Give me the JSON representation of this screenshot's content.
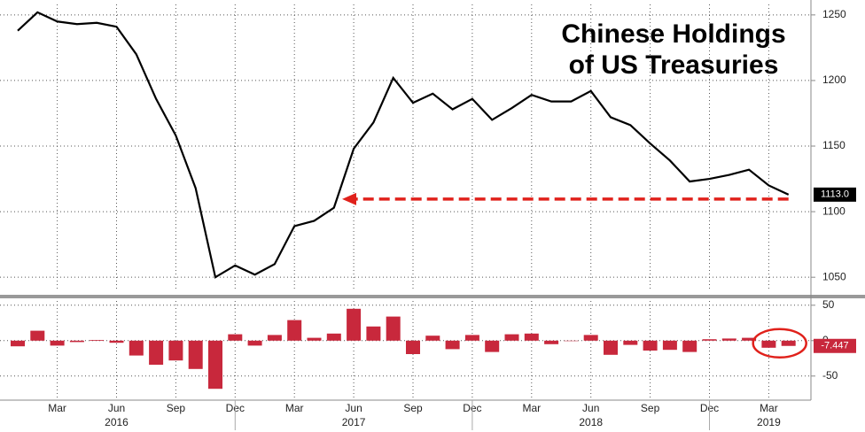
{
  "chart_data": [
    {
      "type": "line",
      "title": "Chinese Holdings",
      "subtitle": "of US Treasuries",
      "x": [
        "2016-01",
        "2016-02",
        "2016-03",
        "2016-04",
        "2016-05",
        "2016-06",
        "2016-07",
        "2016-08",
        "2016-09",
        "2016-10",
        "2016-11",
        "2016-12",
        "2017-01",
        "2017-02",
        "2017-03",
        "2017-04",
        "2017-05",
        "2017-06",
        "2017-07",
        "2017-08",
        "2017-09",
        "2017-10",
        "2017-11",
        "2017-12",
        "2018-01",
        "2018-02",
        "2018-03",
        "2018-04",
        "2018-05",
        "2018-06",
        "2018-07",
        "2018-08",
        "2018-09",
        "2018-10",
        "2018-11",
        "2018-12",
        "2019-01",
        "2019-02",
        "2019-03",
        "2019-04"
      ],
      "series": [
        {
          "color": "#000000",
          "values": [
            1238,
            1252,
            1245,
            1243,
            1244,
            1241,
            1220,
            1186,
            1158,
            1118,
            1050,
            1059,
            1052,
            1060,
            1089,
            1093,
            1103,
            1148,
            1168,
            1202,
            1183,
            1190,
            1178,
            1186,
            1170,
            1179,
            1189,
            1184,
            1184,
            1192,
            1172,
            1166,
            1152,
            1139,
            1123,
            1125,
            1128,
            1132,
            1120,
            1113
          ],
          "value_labels": [
            null,
            null,
            null,
            null,
            null,
            null,
            null,
            null,
            null,
            null,
            null,
            null,
            null,
            null,
            null,
            null,
            null,
            null,
            null,
            null,
            null,
            null,
            null,
            null,
            null,
            null,
            null,
            null,
            null,
            null,
            null,
            null,
            null,
            null,
            null,
            null,
            null,
            null,
            null,
            "1113.0"
          ]
        }
      ],
      "ylim": [
        1040,
        1258
      ],
      "yticks": [
        1050,
        1100,
        1150,
        1200,
        1250
      ],
      "grid": true
    },
    {
      "type": "bar",
      "x": [
        "2016-01",
        "2016-02",
        "2016-03",
        "2016-04",
        "2016-05",
        "2016-06",
        "2016-07",
        "2016-08",
        "2016-09",
        "2016-10",
        "2016-11",
        "2016-12",
        "2017-01",
        "2017-02",
        "2017-03",
        "2017-04",
        "2017-05",
        "2017-06",
        "2017-07",
        "2017-08",
        "2017-09",
        "2017-10",
        "2017-11",
        "2017-12",
        "2018-01",
        "2018-02",
        "2018-03",
        "2018-04",
        "2018-05",
        "2018-06",
        "2018-07",
        "2018-08",
        "2018-09",
        "2018-10",
        "2018-11",
        "2018-12",
        "2019-01",
        "2019-02",
        "2019-03",
        "2019-04"
      ],
      "series": [
        {
          "color": "#c8283c",
          "values": [
            -8,
            14,
            -7,
            -2,
            1,
            -3,
            -21,
            -34,
            -28,
            -40,
            -68,
            9,
            -7,
            8,
            29,
            4,
            10,
            45,
            20,
            34,
            -19,
            7,
            -12,
            8,
            -16,
            9,
            10,
            -5,
            0,
            8,
            -20,
            -6,
            -14,
            -13,
            -16,
            2,
            3,
            4,
            -10,
            -7.447
          ]
        }
      ],
      "ylim": [
        -84,
        56
      ],
      "yticks": [
        -50,
        0,
        50
      ],
      "grid": true,
      "xticks": [
        {
          "value": "2016-03",
          "label": "Mar"
        },
        {
          "value": "2016-06",
          "label": "Jun"
        },
        {
          "value": "2016-09",
          "label": "Sep"
        },
        {
          "value": "2016-12",
          "label": "Dec"
        },
        {
          "value": "2017-03",
          "label": "Mar"
        },
        {
          "value": "2017-06",
          "label": "Jun"
        },
        {
          "value": "2017-09",
          "label": "Sep"
        },
        {
          "value": "2017-12",
          "label": "Dec"
        },
        {
          "value": "2018-03",
          "label": "Mar"
        },
        {
          "value": "2018-06",
          "label": "Jun"
        },
        {
          "value": "2018-09",
          "label": "Sep"
        },
        {
          "value": "2018-12",
          "label": "Dec"
        },
        {
          "value": "2019-03",
          "label": "Mar"
        }
      ],
      "year_labels": [
        {
          "value": "2016-06",
          "label": "2016"
        },
        {
          "value": "2017-06",
          "label": "2017"
        },
        {
          "value": "2018-06",
          "label": "2018"
        },
        {
          "value": "2019-03",
          "label": "2019"
        }
      ]
    }
  ]
}
